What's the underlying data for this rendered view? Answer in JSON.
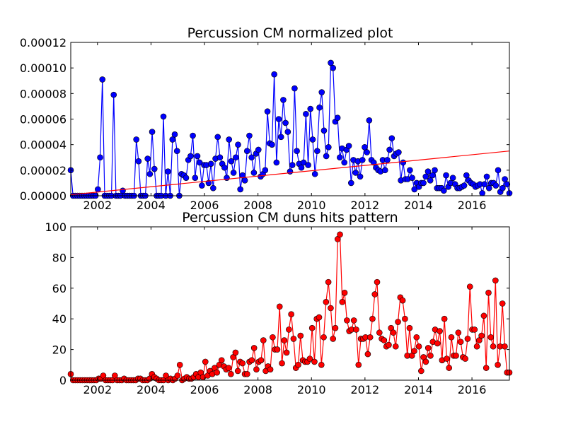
{
  "charts": {
    "top": {
      "type": "line",
      "title": "Percussion CM normalized plot",
      "xlabel": "",
      "ylabel": "",
      "xlim": [
        2001.0,
        2017.4
      ],
      "ylim": [
        0,
        0.00012
      ],
      "x_ticks": [
        "2002",
        "2004",
        "2006",
        "2008",
        "2010",
        "2012",
        "2014",
        "2016"
      ],
      "y_ticks": [
        "0.00000",
        "0.00002",
        "0.00004",
        "0.00006",
        "0.00008",
        "0.00010",
        "0.00012"
      ],
      "grid": false,
      "colors": {
        "series": "#0000ff",
        "trend": "#ff0000"
      },
      "series": [
        {
          "values_e5": [
            2.0,
            0,
            0,
            0,
            0,
            0,
            0,
            0,
            0,
            0,
            0,
            0,
            0.5,
            3.0,
            9.1,
            0,
            0,
            0,
            0,
            7.9,
            0,
            0,
            0,
            0.4,
            0,
            0,
            0,
            0,
            0,
            4.4,
            2.7,
            0,
            0,
            0,
            2.9,
            1.7,
            5.0,
            2.1,
            0,
            0,
            0,
            6.2,
            0,
            1.9,
            0,
            4.4,
            4.8,
            3.5,
            0,
            1.7,
            1.6,
            1.4,
            2.8,
            3.1,
            4.7,
            1.4,
            3.1,
            2.6,
            0.8,
            2.4,
            2.4,
            1.0,
            2.5,
            0.6,
            2.9,
            4.6,
            3.0,
            2.5,
            2.2,
            1.4,
            4.4,
            2.7,
            1.8,
            3.0,
            4.0,
            0.5,
            1.6,
            1.2,
            3.5,
            4.7,
            3.0,
            1.8,
            3.3,
            3.6,
            1.5,
            1.7,
            2.0,
            6.6,
            4.1,
            4.0,
            9.5,
            2.6,
            6.0,
            4.6,
            7.5,
            5.7,
            5.0,
            1.9,
            2.4,
            8.4,
            3.5,
            2.5,
            2.2,
            2.6,
            6.4,
            2.4,
            6.8,
            4.4,
            1.7,
            3.5,
            6.9,
            8.1,
            5.1,
            3.1,
            3.8,
            10.4,
            10.0,
            5.8,
            6.1,
            3.0,
            3.7,
            2.6,
            3.6,
            3.9,
            1.0,
            2.8,
            1.8,
            2.7,
            1.5,
            2.8,
            3.8,
            3.4,
            5.9,
            2.8,
            2.6,
            2.2,
            2.0,
            1.9,
            2.8,
            2.0,
            2.8,
            3.6,
            4.5,
            3.1,
            3.3,
            3.4,
            1.2,
            2.6,
            1.3,
            1.3,
            2.0,
            1.4,
            0.5,
            1.0,
            0.7,
            1.0,
            1.0,
            1.5,
            1.9,
            1.2,
            1.6,
            2.0,
            0.6,
            0.6,
            0.6,
            0.4,
            1.6,
            0.7,
            1.0,
            1.4,
            0.9,
            0.6,
            0.6,
            0.7,
            0.8,
            1.6,
            1.2,
            1.0,
            0.9,
            0.7,
            0.8,
            0.9,
            0.2,
            0.9,
            1.5,
            0.6,
            1.0,
            1.0,
            0.8,
            2.0,
            0.3,
            0.6,
            1.3,
            0.9,
            0.2
          ]
        }
      ],
      "trend_line": {
        "x": [
          2001.0,
          2017.4
        ],
        "y_e5": [
          0.08,
          3.5
        ]
      }
    },
    "bottom": {
      "type": "line",
      "title": "Percussion CM duns hits pattern",
      "xlabel": "",
      "ylabel": "",
      "xlim": [
        2001.0,
        2017.4
      ],
      "ylim": [
        0,
        100
      ],
      "x_ticks": [
        "2002",
        "2004",
        "2006",
        "2008",
        "2010",
        "2012",
        "2014",
        "2016"
      ],
      "y_ticks": [
        "0",
        "20",
        "40",
        "60",
        "80",
        "100"
      ],
      "grid": false,
      "colors": {
        "series": "#ff0000"
      },
      "series": [
        {
          "values": [
            4,
            0,
            0,
            0,
            0,
            0,
            0,
            0,
            0,
            0,
            0,
            0,
            1,
            1,
            3,
            0,
            0,
            0,
            0,
            3,
            0,
            0,
            0,
            1,
            0,
            0,
            0,
            0,
            0,
            1,
            1,
            0,
            0,
            0,
            1,
            4,
            2,
            1,
            0,
            0,
            0,
            3,
            0,
            1,
            0,
            1,
            3,
            10,
            0,
            1,
            2,
            1,
            1,
            2,
            4,
            2,
            5,
            2,
            12,
            3,
            6,
            4,
            8,
            5,
            10,
            13,
            9,
            7,
            8,
            4,
            15,
            18,
            6,
            12,
            11,
            4,
            4,
            12,
            13,
            21,
            7,
            12,
            13,
            26,
            6,
            9,
            7,
            28,
            20,
            20,
            48,
            11,
            26,
            18,
            33,
            43,
            27,
            8,
            10,
            29,
            13,
            12,
            12,
            14,
            34,
            12,
            40,
            41,
            10,
            28,
            51,
            64,
            47,
            27,
            34,
            92,
            95,
            51,
            57,
            39,
            32,
            33,
            39,
            33,
            10,
            27,
            27,
            28,
            17,
            28,
            40,
            56,
            64,
            31,
            27,
            26,
            22,
            23,
            34,
            31,
            22,
            38,
            54,
            52,
            40,
            16,
            34,
            16,
            19,
            28,
            22,
            6,
            15,
            12,
            21,
            16,
            25,
            33,
            24,
            32,
            13,
            40,
            14,
            8,
            28,
            16,
            16,
            31,
            25,
            15,
            14,
            27,
            61,
            33,
            33,
            22,
            26,
            29,
            42,
            8,
            57,
            28,
            22,
            65,
            10,
            22,
            50,
            22,
            5,
            5
          ]
        }
      ]
    }
  }
}
